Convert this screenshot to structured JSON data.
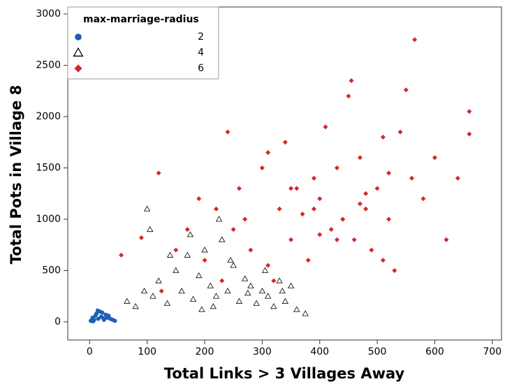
{
  "chart_data": {
    "type": "scatter",
    "x_label": "Total Links > 3 Villages Away",
    "y_label": "Total Pots in Village 8",
    "xlim": [
      -38,
      716
    ],
    "ylim": [
      -177,
      3068
    ],
    "xticks": [
      0,
      100,
      200,
      300,
      400,
      500,
      600,
      700
    ],
    "yticks": [
      0,
      500,
      1000,
      1500,
      2000,
      2500,
      3000
    ],
    "legend_title": "max-marriage-radius",
    "legend_position": "top-left",
    "series": [
      {
        "name": "2",
        "color": "#1f5fb4",
        "marker": "circle",
        "x": [
          2,
          5,
          8,
          10,
          12,
          15,
          18,
          20,
          22,
          25,
          28,
          30,
          33,
          36,
          40,
          44,
          6,
          14,
          24,
          32
        ],
        "values": [
          10,
          40,
          20,
          60,
          80,
          30,
          100,
          50,
          90,
          20,
          70,
          40,
          60,
          30,
          20,
          10,
          5,
          110,
          35,
          50
        ]
      },
      {
        "name": "4",
        "color": "#000000",
        "marker": "triangle",
        "x": [
          65,
          80,
          95,
          100,
          110,
          120,
          135,
          150,
          160,
          170,
          180,
          190,
          200,
          210,
          220,
          230,
          240,
          250,
          260,
          270,
          280,
          290,
          300,
          310,
          320,
          330,
          340,
          350,
          360,
          375,
          105,
          140,
          175,
          215,
          245,
          275,
          305,
          335,
          225,
          195
        ],
        "values": [
          200,
          150,
          300,
          1100,
          250,
          400,
          180,
          500,
          300,
          650,
          220,
          450,
          700,
          350,
          250,
          800,
          300,
          550,
          200,
          420,
          350,
          180,
          300,
          250,
          150,
          400,
          200,
          350,
          120,
          80,
          900,
          650,
          850,
          150,
          600,
          280,
          500,
          300,
          1000,
          120
        ]
      },
      {
        "name": "6",
        "color": "#d62728",
        "marker": "diamond",
        "x": [
          55,
          90,
          120,
          125,
          150,
          170,
          190,
          200,
          220,
          240,
          250,
          260,
          280,
          300,
          310,
          320,
          330,
          340,
          350,
          360,
          370,
          380,
          390,
          400,
          410,
          420,
          430,
          440,
          450,
          455,
          460,
          470,
          480,
          490,
          500,
          510,
          520,
          530,
          540,
          550,
          560,
          565,
          580,
          600,
          620,
          640,
          660,
          660,
          230,
          270,
          310,
          390,
          430,
          470,
          510,
          350,
          400,
          440,
          480,
          520
        ],
        "values": [
          650,
          820,
          1450,
          300,
          700,
          900,
          1200,
          600,
          1100,
          1850,
          900,
          1300,
          700,
          1500,
          1650,
          400,
          1100,
          1750,
          800,
          1300,
          1050,
          600,
          1400,
          1200,
          1900,
          900,
          1500,
          1000,
          2200,
          2350,
          800,
          1600,
          1100,
          700,
          1300,
          1800,
          1000,
          500,
          1850,
          2260,
          1400,
          2750,
          1200,
          1600,
          800,
          1400,
          2050,
          1830,
          400,
          1000,
          550,
          1100,
          800,
          1150,
          600,
          1300,
          850,
          1000,
          1250,
          1450
        ]
      }
    ]
  }
}
